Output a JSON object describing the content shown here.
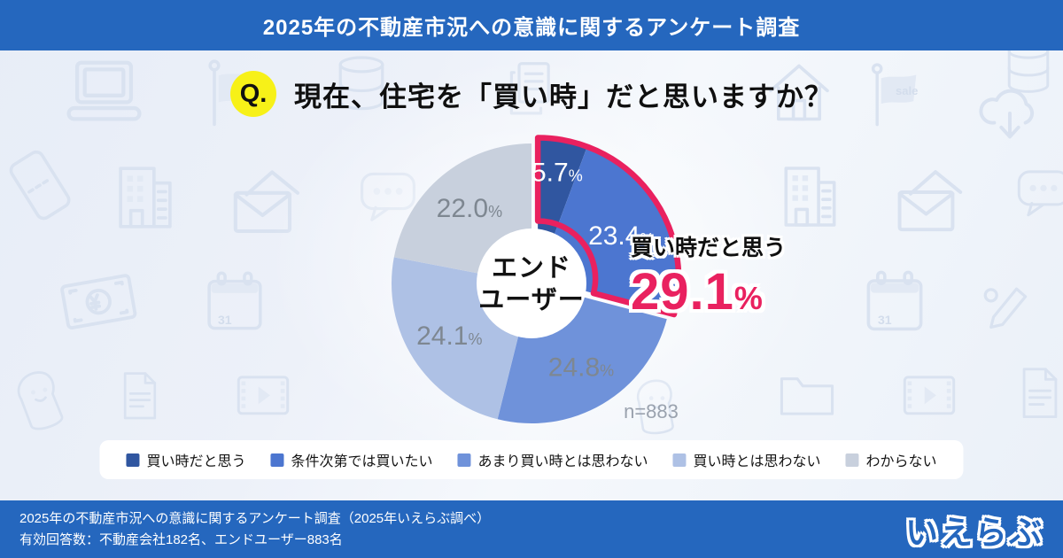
{
  "theme": {
    "primary": "#2567be",
    "background": "#edf1f9",
    "accent": "#e9215f"
  },
  "header": {
    "title": "2025年の不動産市況への意識に関するアンケート調査"
  },
  "question": {
    "badge": "Q.",
    "text": "現在、住宅を「買い時」だと思いますか？"
  },
  "chart_data": {
    "type": "donut",
    "title": "現在、住宅を「買い時」だと思いますか？",
    "subject": "エンドユーザー",
    "center_label_lines": [
      "エンド",
      "ユーザー"
    ],
    "categories": [
      "買い時だと思う",
      "条件次第では買いたい",
      "あまり買い時とは思わない",
      "買い時とは思わない",
      "わからない"
    ],
    "values": [
      5.7,
      23.4,
      24.8,
      24.1,
      22.0
    ],
    "unit": "%",
    "colors": [
      "#3056a0",
      "#4c76d0",
      "#6f92da",
      "#aec1e5",
      "#c8d0dd"
    ],
    "label_colors": [
      "#ffffff",
      "#ffffff",
      "#7e8791",
      "#7e8791",
      "#7e8791"
    ],
    "sample_size_label": "n=883",
    "start_angle_deg": 0,
    "direction": "clockwise",
    "legend_position": "bottom",
    "highlight": {
      "indices": [
        0,
        1
      ],
      "label": "買い時だと思う",
      "value": "29.1",
      "unit": "%",
      "color": "#e9215f"
    }
  },
  "background": {
    "sale_label": "sale",
    "calendar_label": "31"
  },
  "footer": {
    "line1": "2025年の不動産市況への意識に関するアンケート調査（2025年いえらぶ調べ）",
    "line2": "有効回答数：不動産会社182名、エンドユーザー883名",
    "logo_text": "いえらぶ"
  }
}
